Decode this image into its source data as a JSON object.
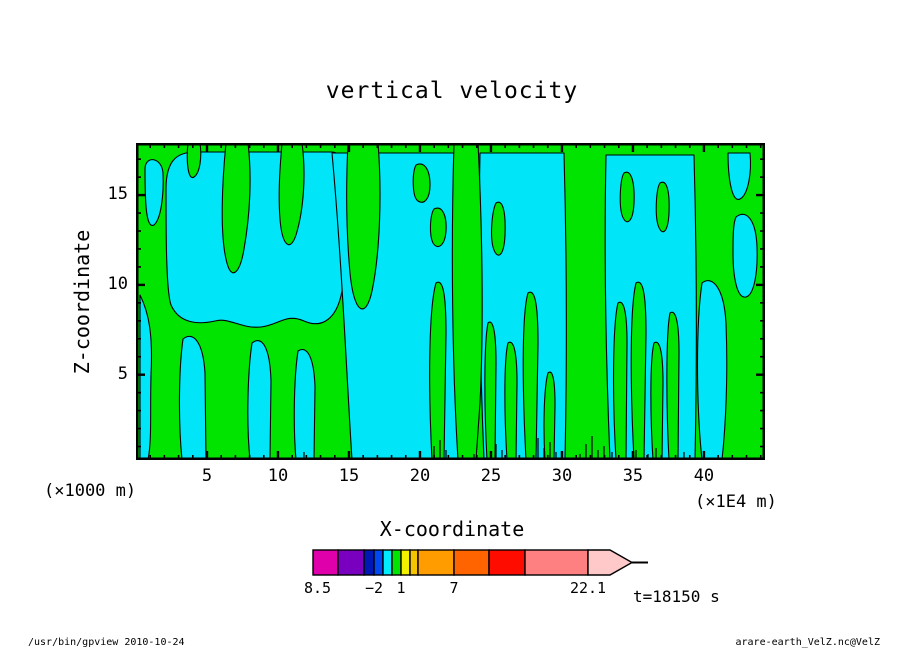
{
  "title": "vertical velocity",
  "axes": {
    "x": {
      "label": "X-coordinate",
      "unit": "(×1E4 m)",
      "min": 0,
      "max": 44.3,
      "major_ticks": [
        5,
        10,
        15,
        20,
        25,
        30,
        35,
        40
      ],
      "minor_step": 1
    },
    "z": {
      "label": "Z-coordinate",
      "unit": "(×1000 m)",
      "min": 0.25,
      "max": 17.9,
      "major_ticks": [
        5,
        10,
        15
      ],
      "minor_step": 1
    }
  },
  "colorbar": {
    "segments": [
      {
        "color": "#df00ac",
        "width": 25,
        "from": -8.5,
        "to": -5.5
      },
      {
        "color": "#7a00c0",
        "width": 26,
        "from": -5.5,
        "to": -3
      },
      {
        "color": "#0018b4",
        "width": 10,
        "from": -3,
        "to": -2
      },
      {
        "color": "#0048f0",
        "width": 9,
        "from": -2,
        "to": -1
      },
      {
        "color": "#00ecff",
        "width": 9,
        "from": -1,
        "to": 0
      },
      {
        "color": "#00e400",
        "width": 9,
        "from": 0,
        "to": 1
      },
      {
        "color": "#f2f200",
        "width": 9,
        "from": 1,
        "to": 2
      },
      {
        "color": "#f5c400",
        "width": 8,
        "from": 2,
        "to": 3
      },
      {
        "color": "#ff9c00",
        "width": 36,
        "from": 3,
        "to": 7
      },
      {
        "color": "#ff6400",
        "width": 35,
        "from": 7,
        "to": 11
      },
      {
        "color": "#ff0c00",
        "width": 36,
        "from": 11,
        "to": 15
      },
      {
        "color": "#ff8080",
        "width": 63,
        "from": 15,
        "to": 22.1
      }
    ],
    "arrow_color": "#ffc9c9",
    "labels": [
      {
        "text": "−8.5",
        "px": 8
      },
      {
        "text": "−2",
        "px": 69
      },
      {
        "text": "1",
        "px": 96
      },
      {
        "text": "7",
        "px": 149
      },
      {
        "text": "22.1",
        "px": 283
      }
    ]
  },
  "time_label": "t=18150 s",
  "footer": {
    "left": "/usr/bin/gpview  2010-10-24",
    "right": "arare-earth_VelZ.nc@VelZ"
  },
  "chart_data": {
    "type": "heatmap",
    "subtype": "filled_contour",
    "title": "vertical velocity",
    "xlabel": "X-coordinate (×1E4 m)",
    "ylabel": "Z-coordinate (×1000 m)",
    "x_range": [
      0,
      44.3
    ],
    "z_range": [
      0.25,
      17.9
    ],
    "x_ticks": [
      5,
      10,
      15,
      20,
      25,
      30,
      35,
      40
    ],
    "z_ticks": [
      5,
      10,
      15
    ],
    "time": "t=18150 s",
    "contour_levels": [
      -8.5,
      -5.5,
      -3,
      -2,
      -1,
      0,
      1,
      2,
      3,
      7,
      11,
      15,
      22.1
    ],
    "palette": [
      "#df00ac",
      "#7a00c0",
      "#0018b4",
      "#0048f0",
      "#00ecff",
      "#00e400",
      "#f2f200",
      "#f5c400",
      "#ff9c00",
      "#ff6400",
      "#ff0c00",
      "#ff8080",
      "#ffc9c9"
    ],
    "field_note": "visible field alternates between band -1..0 (cyan) and band 0..1 (green), black contour lines at 0; turbulent vertical plumes, densest near x=20..30",
    "colors": {
      "green": "#00e400",
      "cyan": "#00e5f8",
      "contour": "#000000",
      "background": "#ffffff"
    },
    "pattern": {
      "cyan_paths": [
        "M9,26 C9,12 26,14 27,30 C28,52 25,76 18,82 C10,86 9,60 9,26 Z",
        "M4,152 C13,170 17,192 15,232 C14,272 16,296 12,317 L4,317 Z",
        "M30,46 C30,16 42,9 60,9 L196,9 C208,9 211,28 209,54 L206,148 C201,176 186,186 168,178 C150,170 143,182 125,184 C105,186 93,174 79,178 C61,182 43,180 35,162 C30,148 30,88 30,46 Z",
        "M47,196 C57,188 67,198 69,230 L70,317 L46,317 C42,276 43,224 47,196 Z",
        "M116,200 C126,192 134,204 135,238 L134,317 L114,317 C110,278 112,226 116,200 Z",
        "M162,208 C171,202 178,214 179,244 L178,317 L160,317 C157,282 158,234 162,208 Z",
        "M196,10 L330,10 C334,110 335,220 332,317 L216,317 C211,240 206,120 196,10 Z",
        "M344,10 L428,10 C431,120 431,220 429,317 L348,317 C344,220 342,110 344,10 Z",
        "M470,12 L558,12 C561,120 561,220 559,317 L474,317 C470,220 468,110 470,12 Z",
        "M600,74 C610,66 620,76 621,104 C622,130 618,152 610,154 C601,156 597,134 597,110 C597,96 597,80 600,74 Z",
        "M566,140 C576,132 588,144 590,180 C592,230 590,280 586,317 L566,317 C560,260 560,180 566,140 Z",
        "M592,10 L614,10 C616,30 612,52 604,56 C596,60 592,36 592,10 Z"
      ],
      "green_paths": [
        "M90,0 L112,0 C116,34 114,72 108,106 C104,130 95,140 90,116 C84,90 86,40 90,0 Z",
        "M146,0 L166,0 C170,30 168,66 160,92 C154,110 146,102 144,76 C142,50 144,24 146,0 Z",
        "M52,0 L64,0 C66,14 64,30 58,34 C52,38 50,18 52,0 Z",
        "M212,0 L242,0 C246,50 244,110 236,148 C230,176 218,172 214,130 C210,86 210,40 212,0 Z",
        "M318,0 L342,0 C346,80 348,180 344,260 L340,317 L322,317 C316,220 315,100 318,0 Z",
        "M280,22 C288,18 294,26 294,42 C294,56 288,62 282,58 C276,54 276,30 280,22 Z",
        "M298,66 C306,62 311,72 310,88 C309,102 302,108 297,100 C293,92 294,72 298,66 Z",
        "M300,140 C306,136 310,146 310,190 L308,317 L296,317 C292,240 293,164 300,140 Z",
        "M352,180 C356,176 360,184 360,220 L359,317 L351,317 C348,260 348,200 352,180 Z",
        "M372,200 C377,196 381,206 381,240 L380,317 L371,317 C368,268 368,216 372,200 Z",
        "M392,150 C398,146 402,156 402,200 L400,317 L390,317 C386,240 386,170 392,150 Z",
        "M412,230 C416,226 419,234 419,262 L418,317 L409,317 C407,284 408,244 412,230 Z",
        "M360,60 C366,56 370,66 369,92 C368,114 361,118 357,104 C354,92 356,68 360,60 Z",
        "M482,160 C487,156 491,166 491,200 L490,317 L480,317 C476,250 477,180 482,160 Z",
        "M500,140 C506,136 510,146 510,190 L508,317 L498,317 C494,240 494,164 500,140 Z",
        "M518,200 C523,196 527,206 527,240 L526,317 L517,317 C514,270 514,216 518,200 Z",
        "M534,170 C539,166 543,176 543,210 L542,317 L533,317 C530,260 530,190 534,170 Z",
        "M488,30 C494,26 499,36 498,60 C497,80 490,84 486,72 C483,62 484,36 488,30 Z",
        "M524,40 C530,36 534,46 533,70 C532,90 526,94 522,82 C519,72 520,46 524,40 Z"
      ],
      "bottom_spikes": [
        [
          168,
          8
        ],
        [
          298,
          14
        ],
        [
          304,
          20
        ],
        [
          310,
          10
        ],
        [
          338,
          6
        ],
        [
          360,
          16
        ],
        [
          366,
          10
        ],
        [
          402,
          22
        ],
        [
          408,
          12
        ],
        [
          414,
          18
        ],
        [
          420,
          8
        ],
        [
          444,
          6
        ],
        [
          450,
          16
        ],
        [
          456,
          24
        ],
        [
          462,
          10
        ],
        [
          468,
          14
        ],
        [
          476,
          8
        ],
        [
          500,
          10
        ],
        [
          512,
          6
        ],
        [
          520,
          12
        ],
        [
          548,
          8
        ]
      ]
    }
  }
}
